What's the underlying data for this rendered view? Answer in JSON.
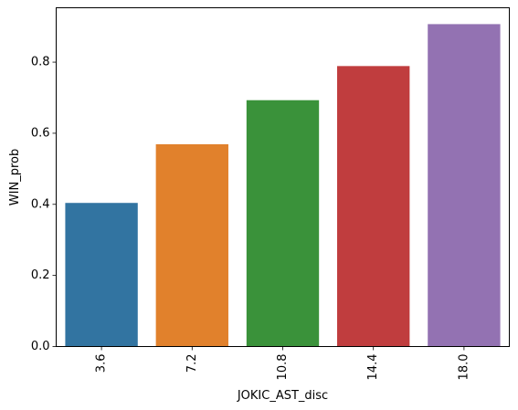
{
  "chart_data": {
    "type": "bar",
    "categories": [
      "3.6",
      "7.2",
      "10.8",
      "14.4",
      "18.0"
    ],
    "values": [
      0.404,
      0.569,
      0.693,
      0.789,
      0.907
    ],
    "colors": [
      "#3274a1",
      "#e1812c",
      "#3a923a",
      "#c03d3e",
      "#9372b2"
    ],
    "xlabel": "JOKIC_AST_disc",
    "ylabel": "WIN_prob",
    "ylim": [
      0,
      0.953
    ],
    "yticks": [
      "0.0",
      "0.2",
      "0.4",
      "0.6",
      "0.8"
    ],
    "ytick_values": [
      0,
      0.2,
      0.4,
      0.6,
      0.8
    ],
    "x_tick_rotation": "vertical",
    "grid": false,
    "legend": "none"
  }
}
